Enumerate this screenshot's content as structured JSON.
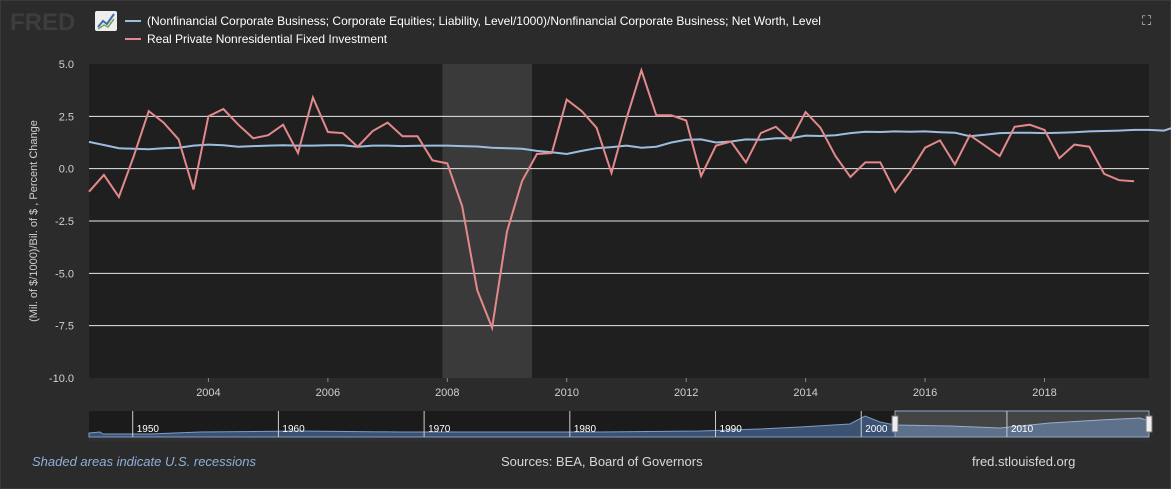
{
  "logo": {
    "text": "FRED",
    "icon": "line-chart-icon"
  },
  "expand_icon": "⛶",
  "colors": {
    "series1": "#9cbde0",
    "series2": "#e3898b",
    "recession": "#3a3a3a",
    "plot_bg": "#1f1f1f"
  },
  "footer": {
    "left": "Shaded areas indicate U.S. recessions",
    "mid": "Sources: BEA, Board of Governors",
    "right": "fred.stlouisfed.org"
  },
  "navigator": {
    "decade_labels": [
      "1950",
      "1960",
      "1970",
      "1980",
      "1990",
      "2000",
      "2010"
    ]
  },
  "chart_data": {
    "type": "line",
    "ylabel": "(Mil. of $/1000)/Bil. of $ , Percent Change",
    "ylim": [
      -10,
      5
    ],
    "yticks": [
      "5.0",
      "2.5",
      "0.0",
      "-2.5",
      "-5.0",
      "-7.5",
      "-10.0"
    ],
    "xlim": [
      2002.0,
      2019.75
    ],
    "xticks": [
      "2004",
      "2006",
      "2008",
      "2010",
      "2012",
      "2014",
      "2016",
      "2018"
    ],
    "recession": [
      2007.917,
      2009.417
    ],
    "series": [
      {
        "name": "(Nonfinancial Corporate Business; Corporate Equities; Liability, Level/1000)/Nonfinancial Corporate Business; Net Worth, Level",
        "values": [
          1.28,
          1.13,
          0.98,
          0.95,
          0.93,
          0.98,
          1.0,
          1.1,
          1.15,
          1.12,
          1.05,
          1.08,
          1.1,
          1.12,
          1.1,
          1.1,
          1.12,
          1.12,
          1.05,
          1.1,
          1.1,
          1.08,
          1.09,
          1.1,
          1.1,
          1.08,
          1.06,
          1.0,
          0.98,
          0.95,
          0.85,
          0.78,
          0.7,
          0.85,
          0.98,
          1.03,
          1.1,
          1.0,
          1.05,
          1.25,
          1.38,
          1.4,
          1.25,
          1.3,
          1.4,
          1.38,
          1.45,
          1.45,
          1.58,
          1.56,
          1.6,
          1.7,
          1.76,
          1.75,
          1.78,
          1.76,
          1.78,
          1.74,
          1.72,
          1.55,
          1.62,
          1.7,
          1.72,
          1.72,
          1.7,
          1.72,
          1.74,
          1.78,
          1.8,
          1.82,
          1.85,
          1.85,
          1.82,
          2.05,
          1.65,
          1.92,
          1.92,
          1.88,
          2.0
        ]
      },
      {
        "name": "Real Private Nonresidential Fixed Investment",
        "values": [
          -1.1,
          -0.3,
          -1.35,
          0.6,
          2.75,
          2.2,
          1.4,
          -1.0,
          2.5,
          2.85,
          2.1,
          1.45,
          1.6,
          2.1,
          0.75,
          3.4,
          1.75,
          1.7,
          1.05,
          1.8,
          2.2,
          1.55,
          1.55,
          0.4,
          0.25,
          -1.8,
          -5.8,
          -7.6,
          -3.0,
          -0.6,
          0.7,
          0.75,
          3.3,
          2.75,
          1.95,
          -0.2,
          2.4,
          4.7,
          2.55,
          2.55,
          2.3,
          -0.35,
          1.1,
          1.3,
          0.3,
          1.7,
          2.0,
          1.35,
          2.7,
          1.95,
          0.6,
          -0.4,
          0.3,
          0.3,
          -1.1,
          -0.15,
          1.0,
          1.35,
          0.2,
          1.6,
          1.1,
          0.6,
          2.0,
          2.1,
          1.85,
          0.5,
          1.15,
          1.05,
          -0.25,
          -0.55,
          -0.6
        ]
      }
    ]
  }
}
